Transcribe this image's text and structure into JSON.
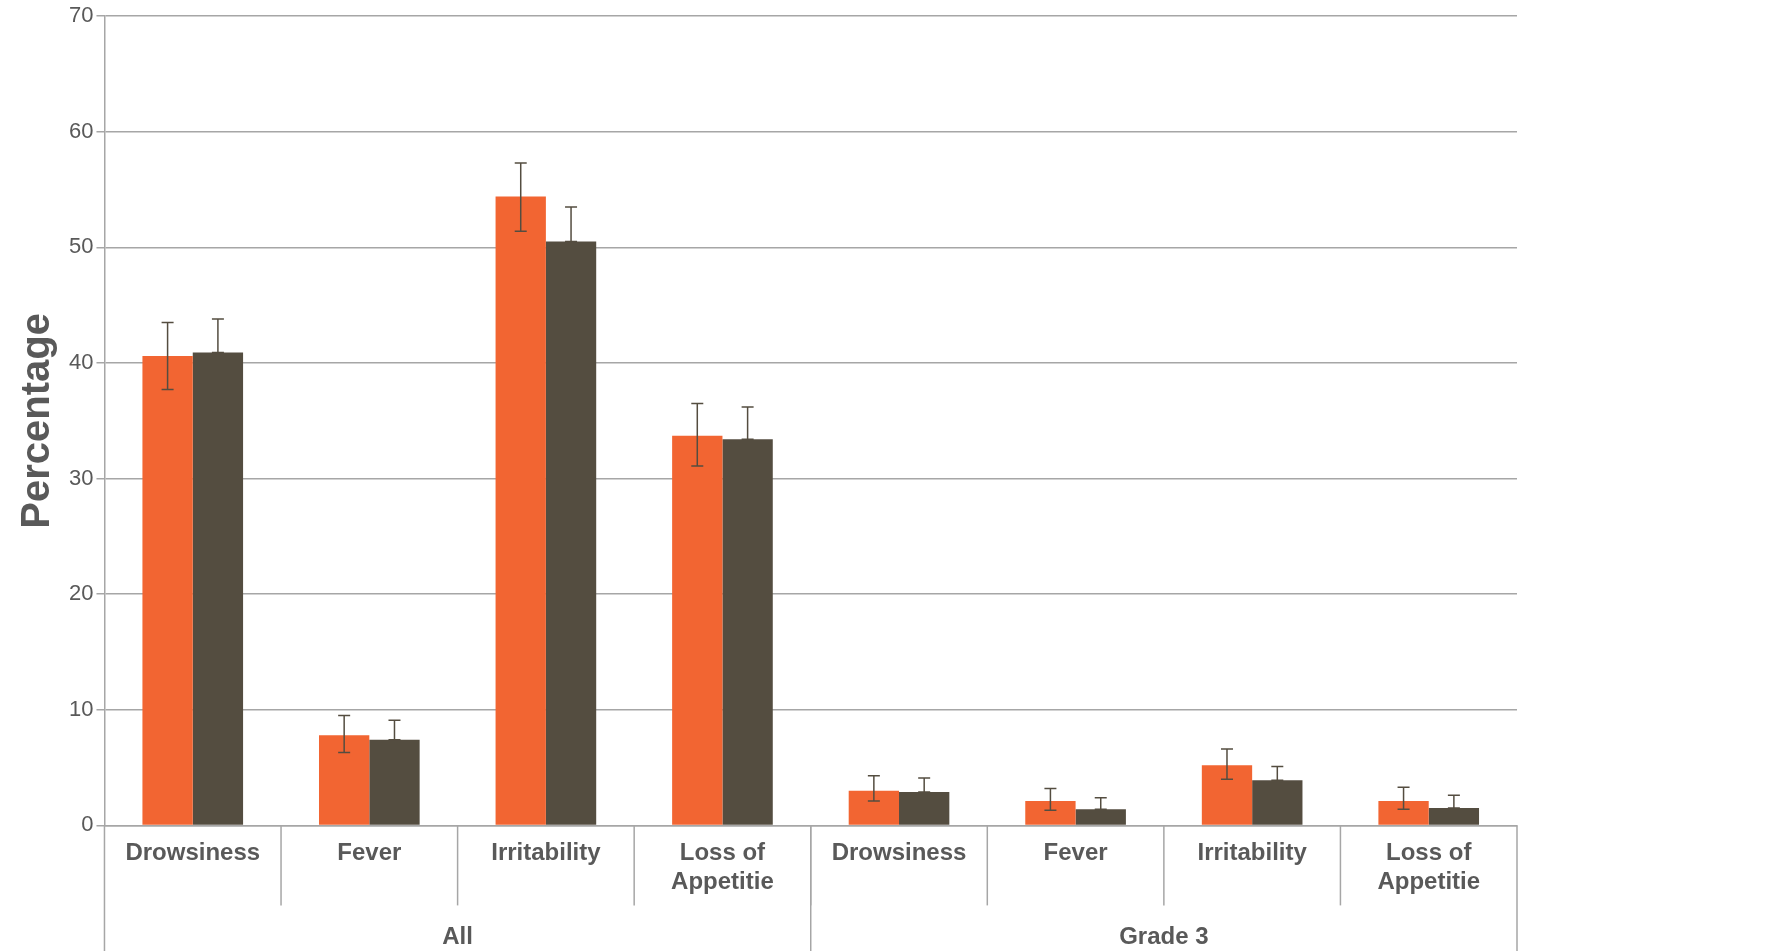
{
  "chart_data": {
    "type": "bar",
    "ylabel": "Percentage",
    "categories": [
      "Drowsiness",
      "Fever",
      "Irritability",
      "Loss of Appetitie",
      "Drowsiness",
      "Fever",
      "Irritability",
      "Loss of Appetitie"
    ],
    "series": [
      {
        "color": "#f26532",
        "values": [
          40.6,
          7.8,
          54.4,
          33.7,
          3.0,
          2.1,
          5.2,
          2.1
        ],
        "errors": [
          [
            37.7,
            43.5
          ],
          [
            6.3,
            9.5
          ],
          [
            51.4,
            57.3
          ],
          [
            31.1,
            36.5
          ],
          [
            2.1,
            4.3
          ],
          [
            1.3,
            3.2
          ],
          [
            4.0,
            6.6
          ],
          [
            1.4,
            3.3
          ]
        ]
      },
      {
        "color": "#544d40",
        "values": [
          40.9,
          7.4,
          50.5,
          33.4,
          2.9,
          1.4,
          3.9,
          1.5
        ],
        "errors": [
          [
            40.9,
            43.8
          ],
          [
            7.4,
            9.1
          ],
          [
            50.5,
            53.5
          ],
          [
            33.4,
            36.2
          ],
          [
            2.9,
            4.1
          ],
          [
            1.4,
            2.4
          ],
          [
            3.9,
            5.1
          ],
          [
            1.5,
            2.6
          ]
        ]
      }
    ],
    "annotations": [
      "All",
      "Grade 3"
    ],
    "ylim": [
      0,
      70
    ],
    "yticks": [
      0,
      10,
      20,
      30,
      40,
      50,
      60,
      70
    ],
    "grid": "y",
    "legend": false
  }
}
